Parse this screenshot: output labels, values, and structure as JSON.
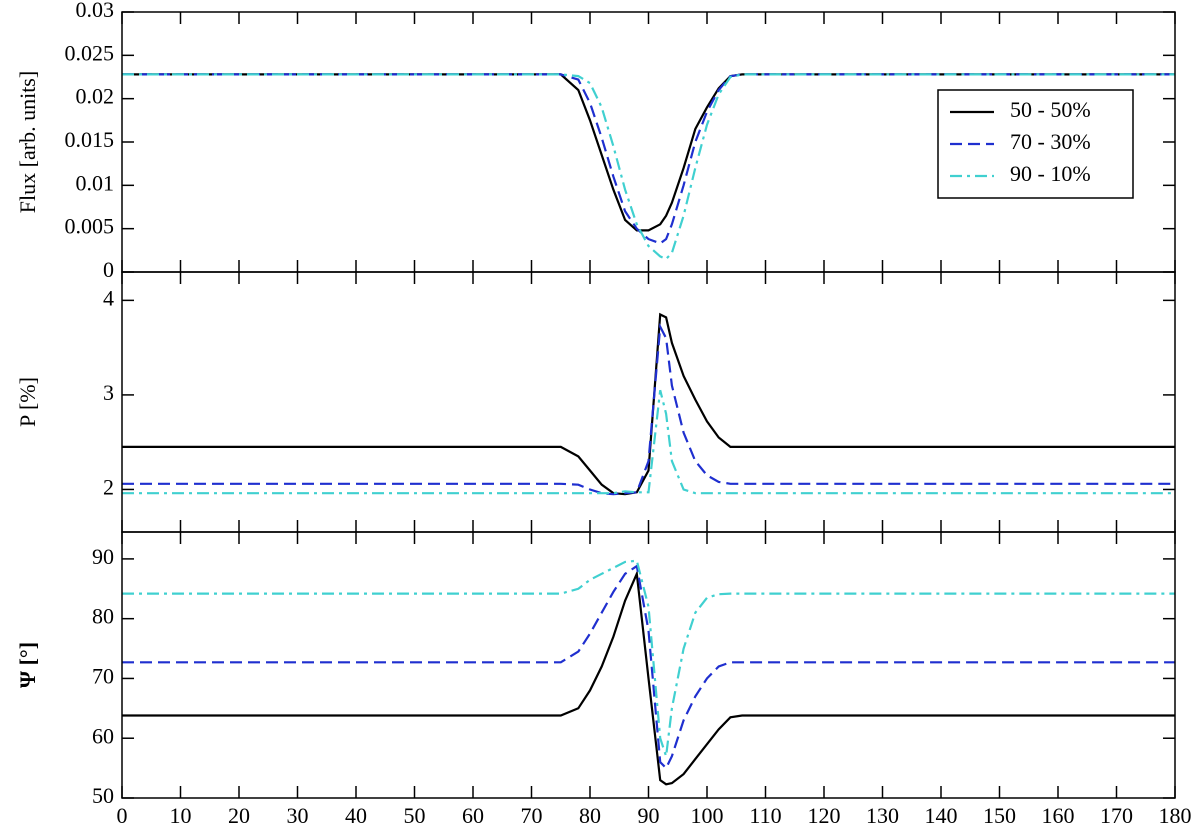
{
  "chart_data": [
    {
      "type": "line",
      "ylabel": "Flux [arb. units]",
      "x": [
        0,
        20,
        40,
        60,
        75,
        78,
        80,
        82,
        84,
        86,
        88,
        90,
        92,
        93,
        94,
        96,
        98,
        100,
        102,
        104,
        106,
        120,
        140,
        160,
        180
      ],
      "xlim": [
        0,
        180
      ],
      "ylim": [
        0,
        0.03
      ],
      "yticks": [
        0,
        0.005,
        0.01,
        0.015,
        0.02,
        0.025,
        0.03
      ],
      "legend": "upper right",
      "series": [
        {
          "name": "50 - 50%",
          "color": "#000000",
          "dash": "solid",
          "values": [
            0.0228,
            0.0228,
            0.0228,
            0.0228,
            0.0228,
            0.021,
            0.0175,
            0.0135,
            0.0095,
            0.006,
            0.0048,
            0.0048,
            0.0055,
            0.0065,
            0.008,
            0.012,
            0.0165,
            0.019,
            0.0212,
            0.0226,
            0.0228,
            0.0228,
            0.0228,
            0.0228,
            0.0228
          ]
        },
        {
          "name": "70 - 30%",
          "color": "#1f2fcf",
          "dash": "dashed",
          "values": [
            0.0228,
            0.0228,
            0.0228,
            0.0228,
            0.0228,
            0.0222,
            0.0195,
            0.0155,
            0.011,
            0.007,
            0.005,
            0.0038,
            0.0033,
            0.0038,
            0.0055,
            0.01,
            0.015,
            0.0185,
            0.021,
            0.0226,
            0.0228,
            0.0228,
            0.0228,
            0.0228,
            0.0228
          ]
        },
        {
          "name": "90 - 10%",
          "color": "#40d0d0",
          "dash": "dashdot",
          "values": [
            0.0228,
            0.0228,
            0.0228,
            0.0228,
            0.0228,
            0.0226,
            0.0218,
            0.019,
            0.0145,
            0.0095,
            0.0055,
            0.003,
            0.0018,
            0.0015,
            0.0022,
            0.0065,
            0.012,
            0.017,
            0.0205,
            0.0225,
            0.0228,
            0.0228,
            0.0228,
            0.0228,
            0.0228
          ]
        }
      ]
    },
    {
      "type": "line",
      "ylabel": "P [%]",
      "x": [
        0,
        20,
        40,
        60,
        75,
        78,
        80,
        82,
        84,
        86,
        88,
        90,
        92,
        93,
        94,
        96,
        98,
        100,
        102,
        104,
        106,
        120,
        140,
        160,
        180
      ],
      "xlim": [
        0,
        180
      ],
      "ylim": [
        1.55,
        4.3
      ],
      "yticks": [
        2,
        3,
        4
      ],
      "series": [
        {
          "color": "#000000",
          "dash": "solid",
          "values": [
            2.45,
            2.45,
            2.45,
            2.45,
            2.45,
            2.35,
            2.2,
            2.05,
            1.96,
            1.95,
            1.97,
            2.2,
            3.85,
            3.82,
            3.55,
            3.2,
            2.95,
            2.72,
            2.55,
            2.45,
            2.45,
            2.45,
            2.45,
            2.45,
            2.45
          ]
        },
        {
          "color": "#1f2fcf",
          "dash": "dashed",
          "values": [
            2.06,
            2.06,
            2.06,
            2.06,
            2.06,
            2.05,
            2.0,
            1.96,
            1.95,
            1.96,
            1.97,
            2.3,
            3.72,
            3.6,
            3.1,
            2.6,
            2.3,
            2.15,
            2.08,
            2.06,
            2.06,
            2.06,
            2.06,
            2.06,
            2.06
          ]
        },
        {
          "color": "#40d0d0",
          "dash": "dashdot",
          "values": [
            1.96,
            1.96,
            1.96,
            1.96,
            1.96,
            1.96,
            1.96,
            1.96,
            1.96,
            1.98,
            1.97,
            1.97,
            3.05,
            2.8,
            2.3,
            2.0,
            1.96,
            1.96,
            1.96,
            1.96,
            1.96,
            1.96,
            1.96,
            1.96,
            1.96
          ]
        }
      ]
    },
    {
      "type": "line",
      "ylabel": "Ψ [°]",
      "x": [
        0,
        20,
        40,
        60,
        75,
        78,
        80,
        82,
        84,
        86,
        88,
        90,
        92,
        93,
        94,
        96,
        98,
        100,
        102,
        104,
        106,
        120,
        140,
        160,
        180
      ],
      "xlim": [
        0,
        180
      ],
      "xticks": [
        0,
        10,
        20,
        30,
        40,
        50,
        60,
        70,
        80,
        90,
        100,
        110,
        120,
        130,
        140,
        150,
        160,
        170,
        180
      ],
      "ylim": [
        50,
        94.5
      ],
      "yticks": [
        50,
        60,
        70,
        80,
        90
      ],
      "series": [
        {
          "color": "#000000",
          "dash": "solid",
          "values": [
            63.8,
            63.8,
            63.8,
            63.8,
            63.8,
            65,
            68,
            72,
            77,
            83,
            87.5,
            70,
            53,
            52.3,
            52.5,
            54,
            56.5,
            59,
            61.5,
            63.5,
            63.8,
            63.8,
            63.8,
            63.8,
            63.8
          ]
        },
        {
          "color": "#1f2fcf",
          "dash": "dashed",
          "values": [
            72.7,
            72.7,
            72.7,
            72.7,
            72.7,
            74.5,
            77.5,
            81,
            84.5,
            87.5,
            88.8,
            78,
            56,
            55,
            57,
            63,
            67,
            70,
            72,
            72.7,
            72.7,
            72.7,
            72.7,
            72.7,
            72.7
          ]
        },
        {
          "color": "#40d0d0",
          "dash": "dashdot",
          "values": [
            84.2,
            84.2,
            84.2,
            84.2,
            84.2,
            85,
            86.5,
            87.5,
            88.5,
            89.5,
            89.7,
            82,
            60,
            57,
            65,
            75,
            81,
            83.5,
            84.1,
            84.2,
            84.2,
            84.2,
            84.2,
            84.2,
            84.2
          ]
        }
      ]
    }
  ]
}
